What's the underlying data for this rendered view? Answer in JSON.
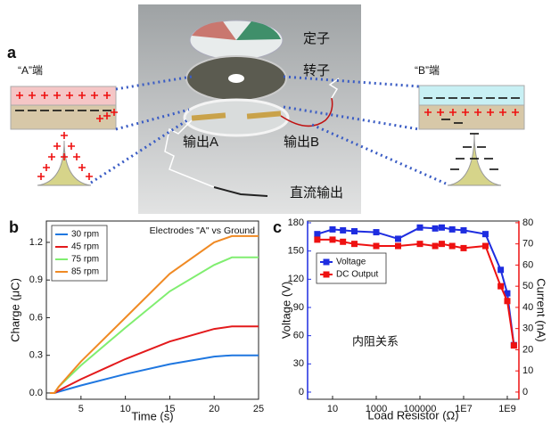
{
  "diagram": {
    "label": "a",
    "stator": "定子",
    "rotor": "转子",
    "output_a": "输出A",
    "output_b": "输出B",
    "dc_output": "直流输出",
    "end_a": "“A”端",
    "end_b": "“B”端"
  },
  "chart_data": [
    {
      "label": "b",
      "type": "line",
      "annotation": "Electrodes \"A\" vs Ground",
      "xlabel": "Time (s)",
      "ylabel": "Charge (μC)",
      "x": [
        1.5,
        2,
        2.5,
        5,
        10,
        15,
        20,
        22,
        25
      ],
      "series": [
        {
          "name": "30 rpm",
          "color": "#1f77e0",
          "values": [
            0,
            0,
            0.01,
            0.06,
            0.15,
            0.23,
            0.29,
            0.3,
            0.3
          ]
        },
        {
          "name": "45 rpm",
          "color": "#e31a1c",
          "values": [
            0,
            0,
            0.02,
            0.11,
            0.27,
            0.41,
            0.51,
            0.53,
            0.53
          ]
        },
        {
          "name": "75 rpm",
          "color": "#80ee70",
          "values": [
            0,
            0,
            0.05,
            0.22,
            0.52,
            0.81,
            1.02,
            1.08,
            1.08
          ]
        },
        {
          "name": "85 rpm",
          "color": "#f08a24",
          "values": [
            0,
            0,
            0.05,
            0.25,
            0.6,
            0.95,
            1.2,
            1.25,
            1.25
          ]
        }
      ],
      "xlim": [
        1.1,
        25
      ],
      "ylim": [
        -0.05,
        1.37
      ],
      "xticks": [
        5,
        10,
        15,
        20,
        25
      ],
      "yticks": [
        {
          "value": 0,
          "label": "0.0"
        },
        0.3,
        0.6,
        0.9,
        1.2
      ],
      "legend": "upper left"
    },
    {
      "label": "c",
      "type": "line",
      "annotation": "内阻关系",
      "xlabel": "Load Resistor (Ω)",
      "ylabel": "Voltage (V)",
      "y2label": "Current (nA)",
      "xscale": "log",
      "x": [
        2,
        10,
        30,
        100,
        1000,
        10000,
        100000,
        500000,
        1000000,
        3000000,
        10000000,
        100000000,
        500000000,
        1000000000,
        2000000000
      ],
      "series": [
        {
          "name": "Voltage",
          "color": "#1e2de0",
          "marker": "square",
          "values": [
            168,
            173,
            172,
            171,
            170,
            163,
            175,
            174,
            175,
            173,
            172,
            168,
            130,
            105,
            50
          ]
        },
        {
          "name": "DC Output",
          "color": "#ee1111",
          "marker": "square",
          "axis": "y2",
          "values": [
            72,
            72,
            71,
            70,
            69,
            69,
            70,
            69,
            70,
            69,
            68,
            69,
            50,
            43,
            22
          ]
        }
      ],
      "xlim": [
        0.72,
        3400000000
      ],
      "ylim": [
        -7.6,
        181.9
      ],
      "y2lim": [
        -3.4,
        80.8
      ],
      "xticks": [
        10,
        1000,
        100000,
        {
          "value": 10000000,
          "label": "1E7"
        },
        {
          "value": 1000000000,
          "label": "1E9"
        }
      ],
      "yticks": [
        0,
        30,
        60,
        90,
        120,
        150,
        180
      ],
      "y2ticks": [
        0,
        10,
        20,
        30,
        40,
        50,
        60,
        70,
        80
      ],
      "ycolor": "#1e2de0",
      "y2color": "#ee1111",
      "legend": "upper left"
    }
  ]
}
